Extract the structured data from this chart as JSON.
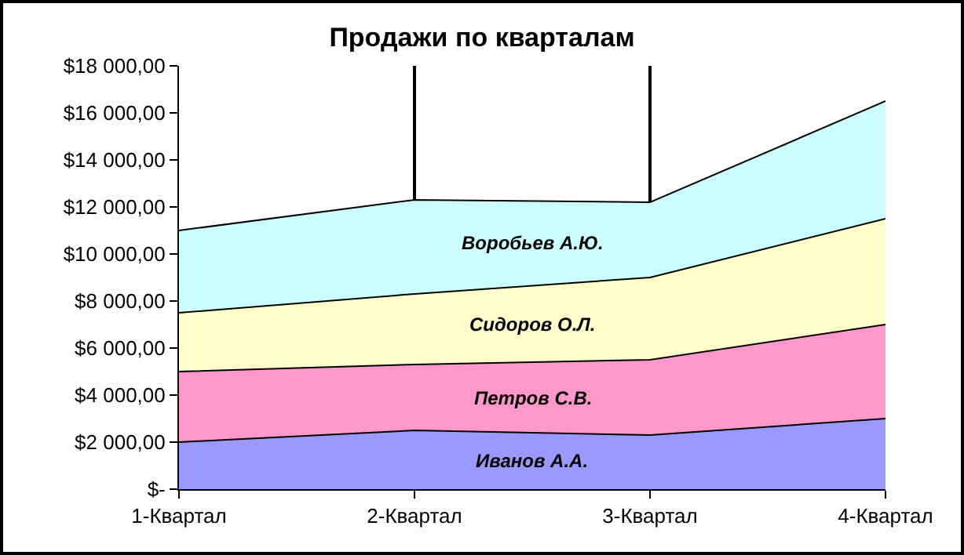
{
  "chart_data": {
    "type": "area",
    "title": "Продажи по кварталам",
    "stacked": true,
    "categories": [
      "1-Квартал",
      "2-Квартал",
      "3-Квартал",
      "4-Квартал"
    ],
    "series": [
      {
        "name": "Иванов А.А.",
        "color": "#9999ff",
        "values": [
          2000,
          2500,
          2300,
          3000
        ]
      },
      {
        "name": "Петров С.В.",
        "color": "#ff99cc",
        "values": [
          3000,
          2800,
          3200,
          4000
        ]
      },
      {
        "name": "Сидоров О.Л.",
        "color": "#ffffcc",
        "values": [
          2500,
          3000,
          3500,
          4500
        ]
      },
      {
        "name": "Воробьев А.Ю.",
        "color": "#ccffff",
        "values": [
          3500,
          4000,
          3200,
          5000
        ]
      }
    ],
    "ylim": [
      0,
      18000
    ],
    "yticks": [
      {
        "value": 0,
        "label": "$-"
      },
      {
        "value": 2000,
        "label": "$2 000,00"
      },
      {
        "value": 4000,
        "label": "$4 000,00"
      },
      {
        "value": 6000,
        "label": "$6 000,00"
      },
      {
        "value": 8000,
        "label": "$8 000,00"
      },
      {
        "value": 10000,
        "label": "$10 000,00"
      },
      {
        "value": 12000,
        "label": "$12 000,00"
      },
      {
        "value": 14000,
        "label": "$14 000,00"
      },
      {
        "value": 16000,
        "label": "$16 000,00"
      },
      {
        "value": 18000,
        "label": "$18 000,00"
      }
    ],
    "grid": "x",
    "legend": false
  }
}
